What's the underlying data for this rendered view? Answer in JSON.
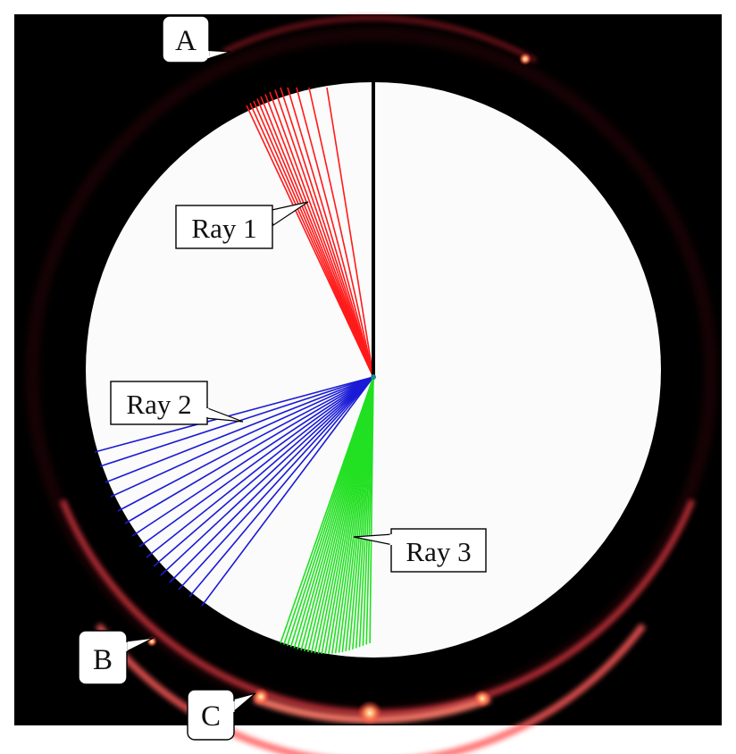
{
  "colors": {
    "background": "#000000",
    "disk": "#fbfbfb",
    "axis": "#000000",
    "ray1": "#ff1a1a",
    "ray2": "#1a1ad6",
    "ray3": "#22e022",
    "ring_glow": "#e0303a"
  },
  "labels": {
    "A": "A",
    "B": "B",
    "C": "C",
    "ray1": "Ray 1",
    "ray2": "Ray 2",
    "ray3": "Ray 3"
  }
}
